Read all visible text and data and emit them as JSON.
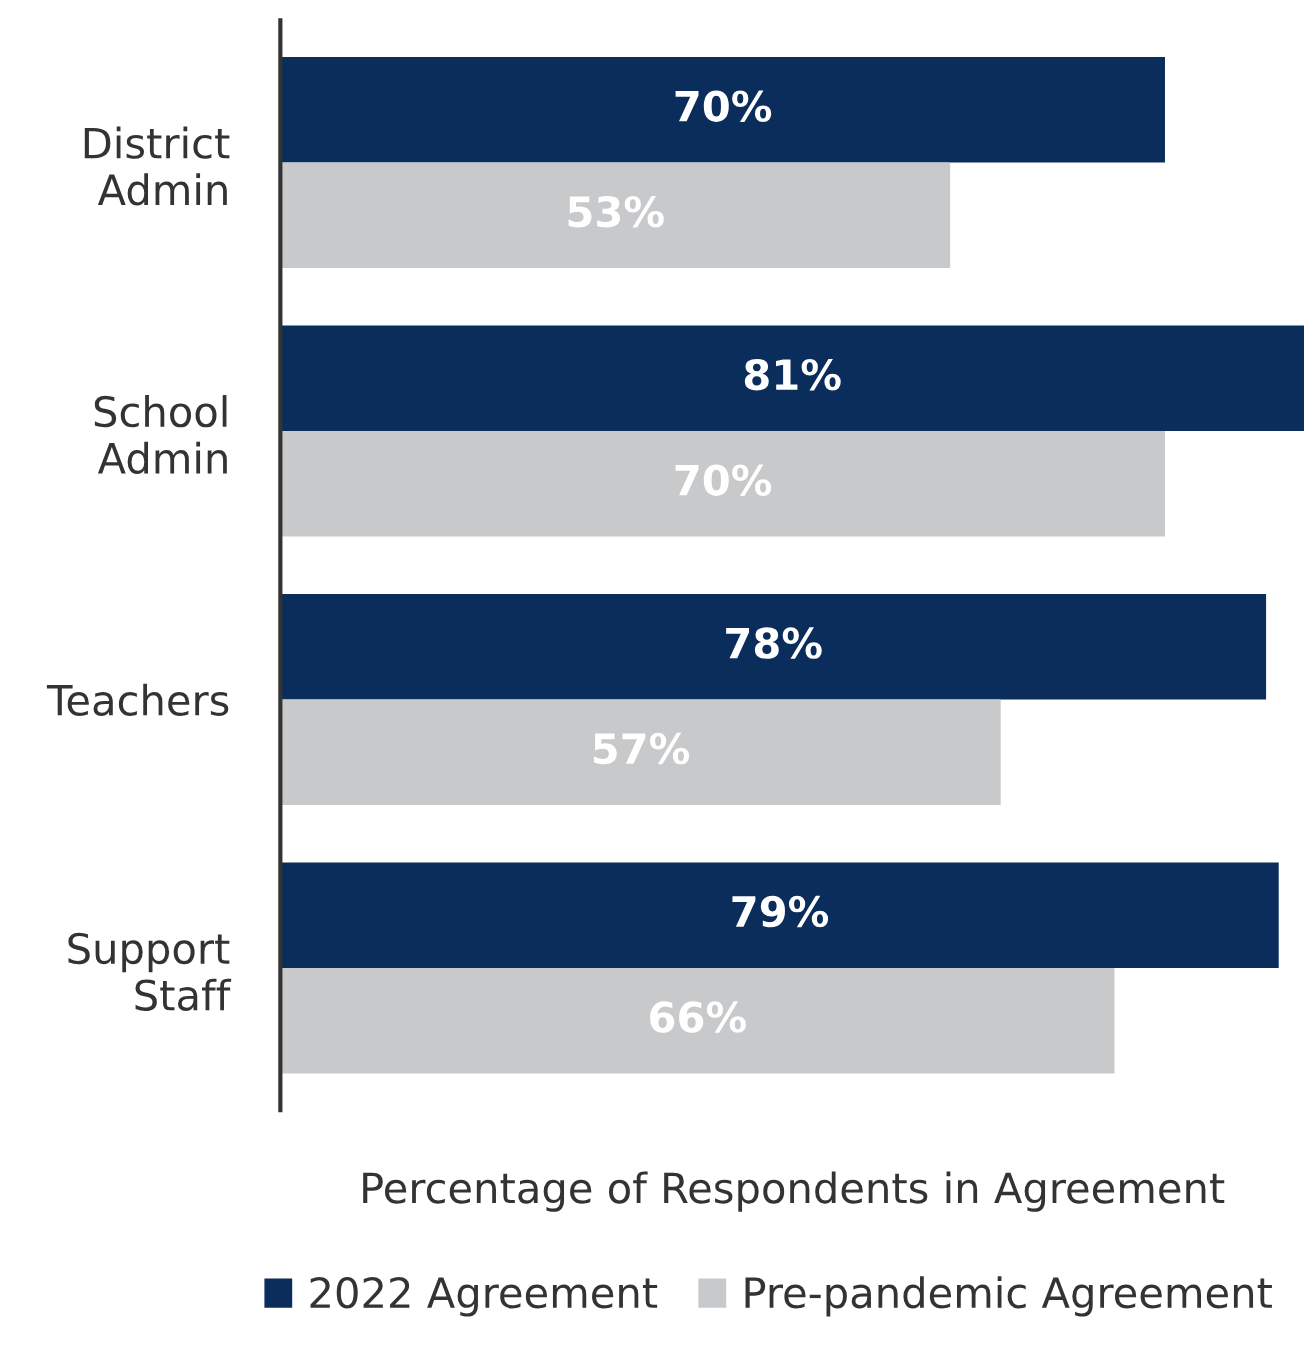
{
  "chart_data": {
    "type": "bar",
    "orientation": "horizontal",
    "categories": [
      "District\nAdmin",
      "School\nAdmin",
      "Teachers",
      "Support\nStaff"
    ],
    "xlabel": "Percentage of Respondents in Agreement",
    "legend": "bottom",
    "grid": false,
    "tick_labels": "y",
    "series": [
      {
        "name": "2022 Agreement",
        "color": "#0b2d5b",
        "values": [
          70,
          81,
          78,
          79
        ],
        "value_labels": [
          "70%",
          "81%",
          "78%",
          "79%"
        ]
      },
      {
        "name": "Pre-pandemic Agreement",
        "color": "#c8c9cb",
        "values": [
          53,
          70,
          57,
          66
        ],
        "value_labels": [
          "53%",
          "70%",
          "57%",
          "66%"
        ]
      }
    ]
  }
}
